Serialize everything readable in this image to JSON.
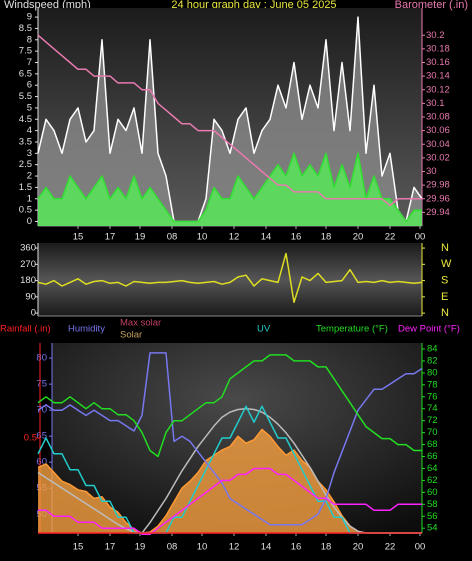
{
  "chart_data": [
    {
      "type": "line",
      "title": "24 hour graph day : June 05 2025",
      "ylabel": "Windspeed (mph)",
      "y2label": "Barometer (.in)",
      "xlim": [
        0,
        48
      ],
      "xticks": [
        {
          "value": 5,
          "label": "15"
        },
        {
          "value": 9,
          "label": "17"
        },
        {
          "value": 12.75,
          "label": "19"
        },
        {
          "value": 16.75,
          "label": "08"
        },
        {
          "value": 20.5,
          "label": "10"
        },
        {
          "value": 24.5,
          "label": "12"
        },
        {
          "value": 28.5,
          "label": "14"
        },
        {
          "value": 32.25,
          "label": "16"
        },
        {
          "value": 36,
          "label": "18"
        },
        {
          "value": 40,
          "label": "20"
        },
        {
          "value": 44,
          "label": "22"
        },
        {
          "value": 47.75,
          "label": "00"
        }
      ],
      "ylim": [
        -0.2,
        9.4
      ],
      "yticks": [
        0,
        0.5,
        1,
        1.5,
        2,
        2.5,
        3,
        3.5,
        4,
        4.5,
        5,
        5.5,
        6,
        6.5,
        7,
        7.5,
        8,
        8.5,
        9
      ],
      "y2lim": [
        29.92,
        30.24
      ],
      "y2ticks": [
        29.94,
        29.96,
        29.98,
        30,
        30.02,
        30.04,
        30.06,
        30.08,
        30.1,
        30.12,
        30.14,
        30.16,
        30.18,
        30.2
      ],
      "series": [
        {
          "color": "#ffffff",
          "fill": "#8a8a8a",
          "values": [
            3,
            4.5,
            4,
            3,
            4.5,
            5,
            3.5,
            4,
            8,
            3,
            4.5,
            4,
            5,
            3,
            8,
            3,
            2,
            0,
            0,
            0,
            0,
            1,
            4.5,
            4,
            3,
            4.5,
            5,
            3,
            4,
            4.5,
            6,
            5,
            7,
            4.5,
            6,
            5,
            8,
            4,
            7,
            4,
            9,
            3,
            6,
            2,
            3,
            0.5,
            0,
            1.5,
            1
          ]
        },
        {
          "color": "#33dd33",
          "fill": "#55ee55",
          "values": [
            1,
            1.5,
            1,
            1,
            2,
            1.5,
            1,
            1.5,
            2,
            1,
            1.5,
            1,
            2,
            1,
            1.5,
            1,
            0.5,
            0,
            0,
            0,
            0,
            0.5,
            1.5,
            1,
            1,
            2,
            1.5,
            1,
            1.5,
            2,
            2.5,
            2,
            3,
            2,
            2.5,
            2,
            3,
            1.5,
            2.5,
            1.5,
            3,
            1,
            2,
            1,
            1,
            0.5,
            0,
            0.5,
            0.5
          ]
        },
        {
          "color": "#e87ab0",
          "axis": "y2",
          "values": [
            30.2,
            30.19,
            30.18,
            30.17,
            30.16,
            30.15,
            30.15,
            30.14,
            30.14,
            30.14,
            30.13,
            30.13,
            30.13,
            30.12,
            30.12,
            30.1,
            30.09,
            30.08,
            30.07,
            30.07,
            30.06,
            30.06,
            30.06,
            30.05,
            30.04,
            30.03,
            30.02,
            30.01,
            30,
            29.99,
            29.98,
            29.98,
            29.97,
            29.97,
            29.97,
            29.97,
            29.96,
            29.96,
            29.96,
            29.96,
            29.96,
            29.96,
            29.96,
            29.96,
            29.95,
            29.96,
            29.96,
            29.96,
            29.96
          ]
        }
      ]
    },
    {
      "type": "line",
      "xlim": [
        0,
        48
      ],
      "ylim": [
        -16,
        388
      ],
      "yticks": [
        0,
        90,
        180,
        270,
        360
      ],
      "y2lim": [
        -16,
        388
      ],
      "y2ticks": [
        {
          "value": 360,
          "label": "N"
        },
        {
          "value": 270,
          "label": "W"
        },
        {
          "value": 180,
          "label": "S"
        },
        {
          "value": 90,
          "label": "E"
        },
        {
          "value": 0,
          "label": "N"
        }
      ],
      "series": [
        {
          "color": "#dddd22",
          "values": [
            170,
            160,
            180,
            150,
            170,
            190,
            160,
            175,
            180,
            165,
            170,
            150,
            175,
            170,
            165,
            170,
            170,
            175,
            180,
            170,
            165,
            170,
            175,
            160,
            170,
            200,
            210,
            150,
            190,
            180,
            170,
            330,
            60,
            200,
            180,
            220,
            170,
            175,
            180,
            240,
            170,
            175,
            170,
            180,
            170,
            175,
            170,
            165,
            170
          ]
        }
      ]
    },
    {
      "type": "line",
      "xlim": [
        0,
        48
      ],
      "xticks": [
        {
          "value": 5,
          "label": "15"
        },
        {
          "value": 9,
          "label": "17"
        },
        {
          "value": 12.75,
          "label": "19"
        },
        {
          "value": 16.75,
          "label": "08"
        },
        {
          "value": 20.5,
          "label": "10"
        },
        {
          "value": 24.5,
          "label": "12"
        },
        {
          "value": 28.5,
          "label": "14"
        },
        {
          "value": 32.25,
          "label": "16"
        },
        {
          "value": 36,
          "label": "18"
        },
        {
          "value": 40,
          "label": "20"
        },
        {
          "value": 44,
          "label": "22"
        },
        {
          "value": 47.75,
          "label": "00"
        }
      ],
      "ylim": [
        46.4,
        82.9
      ],
      "yticks": [
        50,
        55,
        60,
        65,
        70,
        75,
        80
      ],
      "y2lim": [
        53.2,
        85
      ],
      "y2ticks": [
        54,
        56,
        58,
        60,
        62,
        64,
        66,
        68,
        70,
        72,
        74,
        76,
        78,
        80,
        82,
        84
      ],
      "y3lim": [
        0,
        1
      ],
      "y3ticks": [
        0.5
      ],
      "y4lim": [
        0,
        1100
      ],
      "y5lim": [
        0,
        12
      ],
      "series": [
        {
          "name": "Solar",
          "color": "#ff9933",
          "fill": "#f7a040",
          "axis": "y4",
          "values": [
            380,
            400,
            350,
            300,
            280,
            250,
            240,
            200,
            210,
            150,
            120,
            60,
            20,
            0,
            5,
            40,
            100,
            180,
            260,
            300,
            350,
            420,
            450,
            480,
            500,
            560,
            520,
            540,
            600,
            560,
            500,
            450,
            480,
            420,
            380,
            300,
            250,
            180,
            100,
            40,
            10,
            0,
            0,
            0,
            0,
            0,
            0,
            0,
            0
          ]
        },
        {
          "name": "Max solar",
          "color": "#bbbbbb",
          "axis": "y4",
          "values": [
            350,
            320,
            290,
            260,
            230,
            200,
            170,
            140,
            110,
            80,
            50,
            25,
            5,
            0,
            60,
            130,
            200,
            280,
            360,
            430,
            500,
            560,
            620,
            670,
            700,
            715,
            720,
            715,
            700,
            670,
            630,
            580,
            520,
            450,
            380,
            300,
            220,
            150,
            90,
            40,
            10,
            0,
            0,
            0,
            0,
            0,
            0,
            0,
            0
          ]
        },
        {
          "name": "UV",
          "color": "#22cccc",
          "axis": "y5",
          "values": [
            5,
            6,
            5,
            5,
            4,
            4,
            3,
            3,
            2,
            2,
            1,
            1,
            0,
            0,
            0,
            0,
            0,
            1,
            1,
            2,
            3,
            4,
            5,
            6,
            6,
            7,
            8,
            7,
            8,
            7,
            6,
            6,
            5,
            4,
            3,
            2,
            2,
            1,
            1,
            0,
            0,
            0,
            0,
            0,
            0,
            0,
            0,
            0,
            0
          ]
        },
        {
          "name": "Humidity",
          "color": "#7777ee",
          "axis": "y",
          "values": [
            70,
            71,
            70,
            70,
            71,
            70,
            69,
            70,
            69,
            68,
            68,
            67,
            66,
            69,
            81,
            81,
            81,
            64,
            65,
            64,
            62,
            60,
            58,
            56,
            53,
            52,
            51,
            50,
            49,
            48,
            48,
            48,
            48,
            48,
            49,
            50,
            53,
            58,
            62,
            66,
            70,
            72,
            74,
            74,
            75,
            76,
            77,
            77,
            78
          ]
        },
        {
          "name": "Dew Point (°F)",
          "color": "#ff22ff",
          "axis": "y2",
          "values": [
            57,
            57,
            56,
            56,
            56,
            55,
            55,
            55,
            54,
            54,
            54,
            54,
            54,
            53,
            53,
            54,
            55,
            56,
            57,
            58,
            59,
            60,
            61,
            62,
            62,
            63,
            63,
            64,
            64,
            64,
            63,
            63,
            62,
            61,
            60,
            59,
            59,
            58,
            58,
            58,
            58,
            58,
            57,
            57,
            57,
            58,
            58,
            58,
            58
          ]
        },
        {
          "name": "Temperature (°F)",
          "color": "#22dd22",
          "axis": "y2",
          "values": [
            75,
            76,
            75,
            75,
            76,
            75,
            74,
            75,
            74,
            74,
            73,
            73,
            72,
            70,
            67,
            66,
            70,
            72,
            72,
            73,
            74,
            75,
            75,
            76,
            79,
            80,
            81,
            82,
            82,
            83,
            83,
            83,
            82,
            82,
            82,
            81,
            81,
            79,
            77,
            75,
            73,
            71,
            70,
            69,
            69,
            68,
            68,
            67,
            67
          ]
        },
        {
          "name": "Rainfall (.in)",
          "color": "#ff2222",
          "axis": "y3",
          "values": [
            0,
            0,
            0,
            0,
            0,
            0,
            0,
            0,
            0,
            0,
            0,
            0,
            0,
            0,
            0,
            0,
            0,
            0,
            0,
            0,
            0,
            0,
            0,
            0,
            0,
            0,
            0,
            0,
            0,
            0,
            0,
            0,
            0,
            0,
            0,
            0,
            0,
            0,
            0,
            0,
            0,
            0,
            0,
            0,
            0,
            0,
            0,
            0,
            0
          ]
        }
      ]
    }
  ]
}
